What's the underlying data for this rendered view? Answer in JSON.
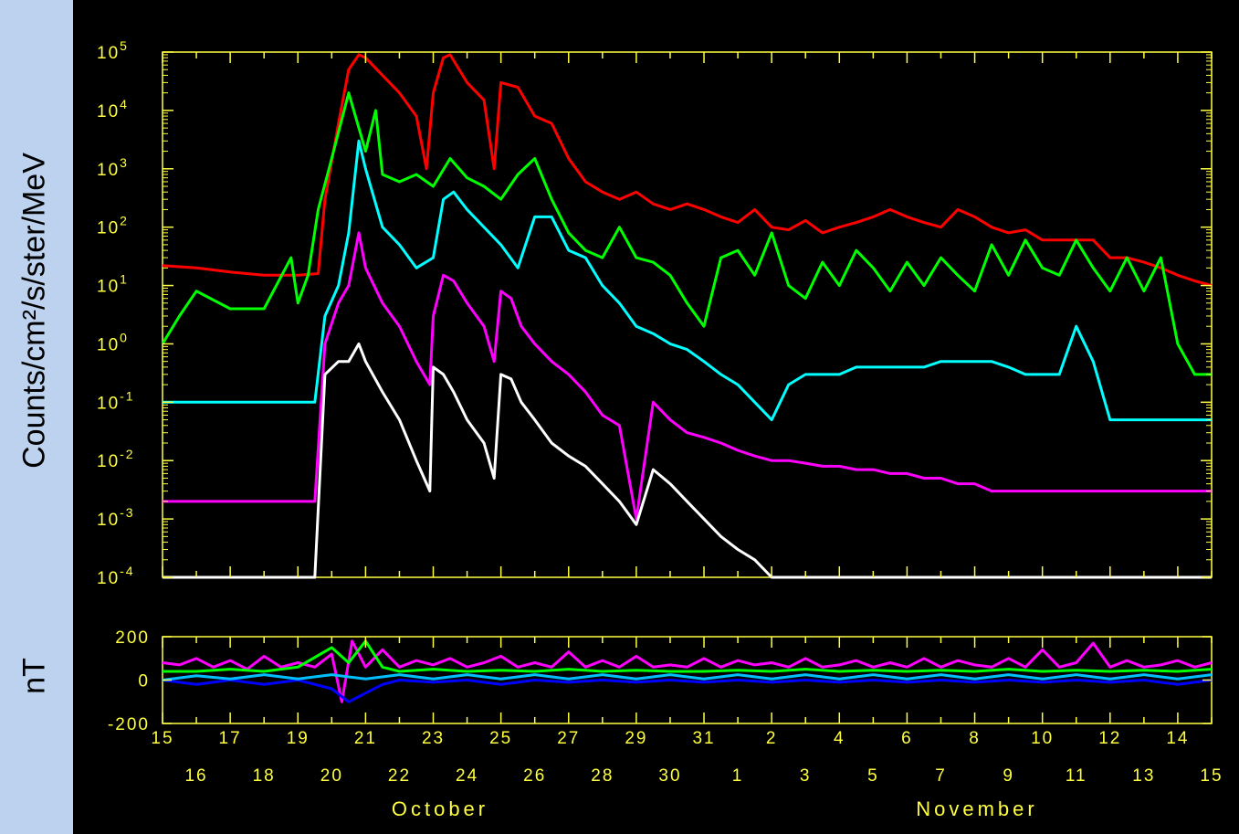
{
  "chart_data": [
    {
      "type": "line",
      "ylabel": "Counts/cm²/s/ster/MeV",
      "y_scale": "log",
      "ylim": [
        0.0001,
        100000
      ],
      "yticks": [
        {
          "base": "10",
          "exp": "5"
        },
        {
          "base": "10",
          "exp": "4"
        },
        {
          "base": "10",
          "exp": "3"
        },
        {
          "base": "10",
          "exp": "2"
        },
        {
          "base": "10",
          "exp": "1"
        },
        {
          "base": "10",
          "exp": "0"
        },
        {
          "base": "10",
          "exp": "-1"
        },
        {
          "base": "10",
          "exp": "-2"
        },
        {
          "base": "10",
          "exp": "-3"
        },
        {
          "base": "10",
          "exp": "-4"
        }
      ],
      "x_unit": "day (Oct 15 – Nov 15)",
      "xlim": [
        0,
        31
      ],
      "series": [
        {
          "color": "#ff0000",
          "x": [
            0,
            1,
            2,
            3,
            4,
            4.6,
            4.8,
            5.2,
            5.5,
            5.8,
            6,
            6.5,
            7,
            7.5,
            7.8,
            8,
            8.3,
            8.5,
            9,
            9.5,
            9.8,
            10,
            10.5,
            11,
            11.5,
            12,
            12.5,
            13,
            13.5,
            14,
            14.5,
            15,
            15.5,
            16,
            16.5,
            17,
            17.5,
            18,
            18.5,
            19,
            19.5,
            20,
            20.5,
            21,
            21.5,
            22,
            22.5,
            23,
            23.5,
            24,
            24.5,
            25,
            25.5,
            26,
            26.5,
            27,
            27.5,
            28,
            28.5,
            29,
            29.5,
            30,
            30.5,
            31
          ],
          "y": [
            22,
            20,
            17,
            15,
            15,
            16,
            300,
            6000,
            50000,
            90000,
            80000,
            40000,
            20000,
            8000,
            1000,
            20000,
            80000,
            90000,
            30000,
            15000,
            1000,
            30000,
            25000,
            8000,
            6000,
            1500,
            600,
            400,
            300,
            400,
            250,
            200,
            250,
            200,
            150,
            120,
            200,
            100,
            90,
            130,
            80,
            100,
            120,
            150,
            200,
            150,
            120,
            100,
            200,
            150,
            100,
            80,
            90,
            60,
            60,
            60,
            60,
            30,
            30,
            25,
            20,
            15,
            12,
            10
          ]
        },
        {
          "color": "#00ff00",
          "x": [
            0,
            0.5,
            1,
            2,
            3,
            3.8,
            4,
            4.3,
            4.6,
            5,
            5.5,
            6,
            6.3,
            6.5,
            7,
            7.5,
            8,
            8.5,
            9,
            9.5,
            10,
            10.5,
            11,
            11.5,
            12,
            12.5,
            13,
            13.5,
            14,
            14.5,
            15,
            15.5,
            16,
            16.5,
            17,
            17.5,
            18,
            18.5,
            19,
            19.5,
            20,
            20.5,
            21,
            21.5,
            22,
            22.5,
            23,
            23.5,
            24,
            24.5,
            25,
            25.5,
            26,
            26.5,
            27,
            27.5,
            28,
            28.5,
            29,
            29.5,
            30,
            30.5,
            31
          ],
          "y": [
            1,
            3,
            8,
            4,
            4,
            30,
            5,
            15,
            200,
            1500,
            20000,
            2000,
            10000,
            800,
            600,
            800,
            500,
            1500,
            700,
            500,
            300,
            800,
            1500,
            300,
            80,
            40,
            30,
            100,
            30,
            25,
            15,
            5,
            2,
            30,
            40,
            15,
            80,
            10,
            6,
            25,
            10,
            40,
            20,
            8,
            25,
            10,
            30,
            15,
            8,
            50,
            15,
            60,
            20,
            15,
            60,
            20,
            8,
            30,
            8,
            30,
            1,
            0.3,
            0.3
          ]
        },
        {
          "color": "#00ffff",
          "x": [
            0,
            1,
            2,
            3,
            4,
            4.5,
            4.8,
            5.2,
            5.5,
            5.8,
            6,
            6.5,
            7,
            7.5,
            8,
            8.3,
            8.6,
            9,
            9.5,
            10,
            10.5,
            11,
            11.5,
            12,
            12.5,
            13,
            13.5,
            14,
            14.5,
            15,
            15.5,
            16,
            16.5,
            17,
            17.5,
            18,
            18.5,
            19,
            19.5,
            20,
            20.5,
            21,
            21.5,
            22,
            22.5,
            23,
            23.5,
            24,
            24.5,
            25,
            25.5,
            26,
            26.5,
            27,
            27.5,
            28,
            28.5,
            29,
            29.5,
            30,
            30.5,
            31
          ],
          "y": [
            0.1,
            0.1,
            0.1,
            0.1,
            0.1,
            0.1,
            3,
            10,
            80,
            3000,
            1000,
            100,
            50,
            20,
            30,
            300,
            400,
            200,
            100,
            50,
            20,
            150,
            150,
            40,
            30,
            10,
            5,
            2,
            1.5,
            1,
            0.8,
            0.5,
            0.3,
            0.2,
            0.1,
            0.05,
            0.2,
            0.3,
            0.3,
            0.3,
            0.4,
            0.4,
            0.4,
            0.4,
            0.4,
            0.5,
            0.5,
            0.5,
            0.5,
            0.4,
            0.3,
            0.3,
            0.3,
            2,
            0.5,
            0.05,
            0.05,
            0.05,
            0.05,
            0.05,
            0.05,
            0.05
          ]
        },
        {
          "color": "#ff00ff",
          "x": [
            0,
            1,
            2,
            3,
            4,
            4.5,
            4.8,
            5.2,
            5.5,
            5.8,
            6,
            6.5,
            7,
            7.5,
            7.9,
            8,
            8.3,
            8.6,
            9,
            9.5,
            9.8,
            10,
            10.3,
            10.6,
            11,
            11.5,
            12,
            12.5,
            13,
            13.5,
            14,
            14.5,
            15,
            15.5,
            16,
            16.5,
            17,
            17.5,
            18,
            18.5,
            19,
            19.5,
            20,
            20.5,
            21,
            21.5,
            22,
            22.5,
            23,
            23.5,
            24,
            24.5,
            25,
            25.5,
            26,
            26.5,
            27,
            27.5,
            28,
            28.5,
            29,
            29.5,
            30,
            30.5,
            31
          ],
          "y": [
            0.002,
            0.002,
            0.002,
            0.002,
            0.002,
            0.002,
            1,
            5,
            10,
            80,
            20,
            5,
            2,
            0.5,
            0.2,
            3,
            15,
            12,
            5,
            2,
            0.5,
            8,
            6,
            2,
            1,
            0.5,
            0.3,
            0.15,
            0.06,
            0.04,
            0.001,
            0.1,
            0.05,
            0.03,
            0.025,
            0.02,
            0.015,
            0.012,
            0.01,
            0.01,
            0.009,
            0.008,
            0.008,
            0.007,
            0.007,
            0.006,
            0.006,
            0.005,
            0.005,
            0.004,
            0.004,
            0.003,
            0.003,
            0.003,
            0.003,
            0.003,
            0.003,
            0.003,
            0.003,
            0.003,
            0.003,
            0.003,
            0.003,
            0.003,
            0.003
          ]
        },
        {
          "color": "#ffffff",
          "x": [
            0,
            1,
            2,
            3,
            4,
            4.5,
            4.8,
            5.2,
            5.5,
            5.8,
            6,
            6.5,
            7,
            7.5,
            7.9,
            8,
            8.3,
            8.6,
            9,
            9.5,
            9.8,
            10,
            10.3,
            10.6,
            11,
            11.5,
            12,
            12.5,
            13,
            13.5,
            14,
            14.5,
            15,
            15.5,
            16,
            16.5,
            17,
            17.5,
            18,
            18.5,
            19,
            19.5,
            20,
            20.5,
            21,
            21.5,
            22,
            22.5,
            23,
            23.5,
            24,
            24.5,
            25,
            25.5,
            26,
            26.5,
            27,
            27.5,
            28,
            28.5,
            29,
            29.5,
            30,
            30.5,
            31
          ],
          "y": [
            0.0001,
            0.0001,
            0.0001,
            0.0001,
            0.0001,
            0.0001,
            0.3,
            0.5,
            0.5,
            1,
            0.5,
            0.15,
            0.05,
            0.01,
            0.003,
            0.4,
            0.3,
            0.15,
            0.05,
            0.02,
            0.005,
            0.3,
            0.25,
            0.1,
            0.05,
            0.02,
            0.012,
            0.008,
            0.004,
            0.002,
            0.0008,
            0.007,
            0.004,
            0.002,
            0.001,
            0.0005,
            0.0003,
            0.0002,
            0.0001,
            0.0001,
            0.0001,
            0.0001,
            0.0001,
            0.0001,
            0.0001,
            0.0001,
            0.0001,
            0.0001,
            0.0001,
            0.0001,
            0.0001,
            0.0001,
            0.0001,
            0.0001,
            0.0001,
            0.0001,
            0.0001,
            0.0001,
            0.0001,
            0.0001,
            0.0001,
            0.0001,
            0.0001,
            0.0001,
            0.0001
          ]
        }
      ]
    },
    {
      "type": "line",
      "ylabel": "nT",
      "ylim": [
        -200,
        200
      ],
      "yticks": [
        "200",
        "0",
        "-200"
      ],
      "x_unit": "day (Oct 15 – Nov 15)",
      "xlim": [
        0,
        31
      ],
      "series": [
        {
          "color": "#ff00ff",
          "x": [
            0,
            0.5,
            1,
            1.5,
            2,
            2.5,
            3,
            3.5,
            4,
            4.5,
            5,
            5.3,
            5.6,
            6,
            6.5,
            7,
            7.5,
            8,
            8.5,
            9,
            9.5,
            10,
            10.5,
            11,
            11.5,
            12,
            12.5,
            13,
            13.5,
            14,
            14.5,
            15,
            15.5,
            16,
            16.5,
            17,
            17.5,
            18,
            18.5,
            19,
            19.5,
            20,
            20.5,
            21,
            21.5,
            22,
            22.5,
            23,
            23.5,
            24,
            24.5,
            25,
            25.5,
            26,
            26.5,
            27,
            27.5,
            28,
            28.5,
            29,
            29.5,
            30,
            30.5,
            31
          ],
          "y": [
            80,
            70,
            100,
            60,
            90,
            50,
            110,
            60,
            80,
            60,
            120,
            -100,
            180,
            60,
            140,
            60,
            90,
            70,
            100,
            60,
            80,
            110,
            60,
            80,
            60,
            130,
            60,
            90,
            60,
            110,
            60,
            70,
            60,
            100,
            60,
            90,
            70,
            80,
            60,
            100,
            60,
            70,
            90,
            60,
            80,
            60,
            100,
            60,
            90,
            70,
            60,
            100,
            60,
            140,
            60,
            80,
            170,
            60,
            90,
            60,
            70,
            90,
            60,
            80
          ]
        },
        {
          "color": "#00ff00",
          "x": [
            0,
            1,
            2,
            3,
            4,
            5,
            5.5,
            6,
            6.5,
            7,
            8,
            9,
            10,
            11,
            12,
            13,
            14,
            15,
            16,
            17,
            18,
            19,
            20,
            21,
            22,
            23,
            24,
            25,
            26,
            27,
            28,
            29,
            30,
            31
          ],
          "y": [
            40,
            40,
            50,
            40,
            60,
            150,
            80,
            180,
            60,
            40,
            50,
            40,
            45,
            40,
            50,
            40,
            45,
            40,
            40,
            45,
            40,
            50,
            40,
            45,
            40,
            45,
            40,
            50,
            40,
            45,
            40,
            45,
            40,
            50
          ]
        },
        {
          "color": "#0000ff",
          "x": [
            0,
            1,
            2,
            3,
            4,
            5,
            5.5,
            6,
            6.5,
            7,
            8,
            9,
            10,
            11,
            12,
            13,
            14,
            15,
            16,
            17,
            18,
            19,
            20,
            21,
            22,
            23,
            24,
            25,
            26,
            27,
            28,
            29,
            30,
            31
          ],
          "y": [
            0,
            -20,
            0,
            -20,
            0,
            -40,
            -100,
            -60,
            -20,
            0,
            -10,
            0,
            -20,
            0,
            -10,
            0,
            -10,
            0,
            -10,
            0,
            -10,
            0,
            -10,
            0,
            -10,
            0,
            -10,
            0,
            -10,
            0,
            -10,
            0,
            -20,
            0
          ]
        },
        {
          "color": "#00bfff",
          "x": [
            0,
            1,
            2,
            3,
            4,
            5,
            6,
            7,
            8,
            9,
            10,
            11,
            12,
            13,
            14,
            15,
            16,
            17,
            18,
            19,
            20,
            21,
            22,
            23,
            24,
            25,
            26,
            27,
            28,
            29,
            30,
            31
          ],
          "y": [
            0,
            20,
            5,
            25,
            5,
            25,
            5,
            25,
            5,
            25,
            5,
            25,
            5,
            25,
            5,
            25,
            5,
            25,
            5,
            25,
            5,
            25,
            5,
            25,
            5,
            25,
            5,
            25,
            5,
            25,
            5,
            25
          ]
        }
      ]
    }
  ],
  "x_axis": {
    "upper_row": [
      "15",
      "17",
      "19",
      "21",
      "23",
      "25",
      "27",
      "29",
      "31",
      "2",
      "4",
      "6",
      "8",
      "10",
      "12",
      "14"
    ],
    "lower_row": [
      "16",
      "18",
      "20",
      "22",
      "24",
      "26",
      "28",
      "30",
      "1",
      "3",
      "5",
      "7",
      "9",
      "11",
      "13",
      "15"
    ],
    "months": [
      "October",
      "November"
    ]
  },
  "colors": {
    "axes": "#ffff40",
    "background": "#000000",
    "label_band": "#bcd2ee"
  }
}
